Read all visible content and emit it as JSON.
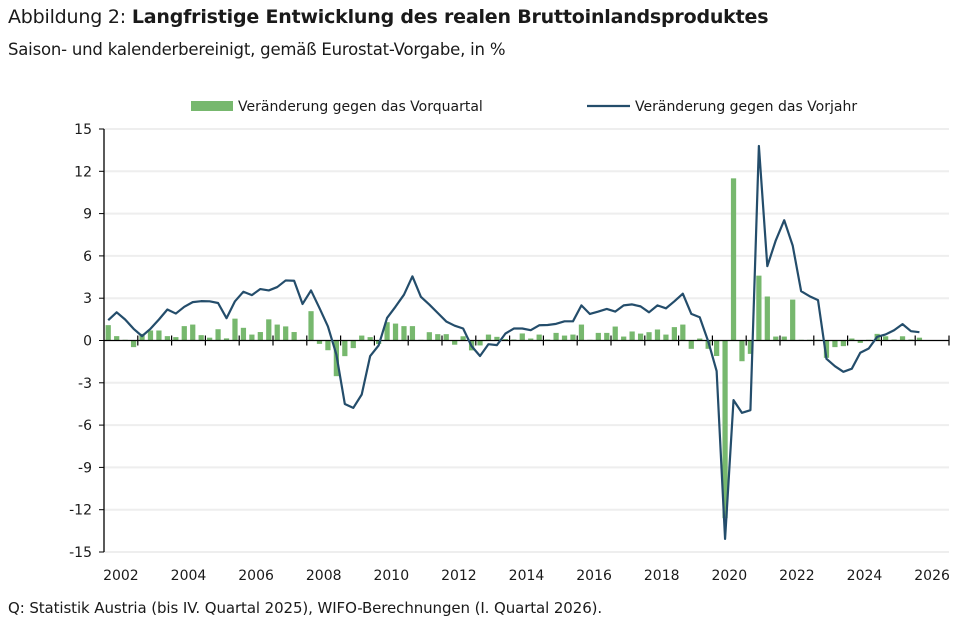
{
  "header": {
    "title_prefix": "Abbildung 2: ",
    "title_main": "Langfristige Entwicklung des realen Bruttoinlandsproduktes",
    "subtitle": "Saison- und kalenderbereinigt, gemäß Eurostat-Vorgabe, in %"
  },
  "footer": {
    "source": "Q: Statistik Austria (bis IV. Quartal 2025), WIFO-Berechnungen (I. Quartal 2026)."
  },
  "colors": {
    "bars": "#77b86e",
    "line": "#244d6b",
    "grid": "#eeeeee",
    "axis": "#000000"
  },
  "chart_data": {
    "type": "bar+line",
    "title": "Langfristige Entwicklung des realen Bruttoinlandsproduktes",
    "subtitle": "Saison- und kalenderbereinigt, gemäß Eurostat-Vorgabe, in %",
    "xlabel": "",
    "ylabel": "",
    "ylim": [
      -15,
      15
    ],
    "yticks": [
      15,
      12,
      9,
      6,
      3,
      0,
      -3,
      -6,
      -9,
      -12,
      -15
    ],
    "xlim_years": [
      2002,
      2027
    ],
    "xtick_labels": [
      "2002",
      "2004",
      "2006",
      "2008",
      "2010",
      "2012",
      "2014",
      "2016",
      "2018",
      "2020",
      "2022",
      "2024",
      "2026"
    ],
    "x_start": "2002Q1",
    "x_end": "2026Q1",
    "grid": "horizontal",
    "legend_position": "top",
    "series": [
      {
        "name": "Veränderung gegen das Vorquartal",
        "type": "bar",
        "values": [
          1.09,
          0.31,
          0.05,
          -0.47,
          0.47,
          0.71,
          0.71,
          0.31,
          0.24,
          1.02,
          1.13,
          0.38,
          0.2,
          0.8,
          0.15,
          1.55,
          0.9,
          0.42,
          0.6,
          1.5,
          1.13,
          1.0,
          0.6,
          0.05,
          2.08,
          -0.24,
          -0.69,
          -2.53,
          -1.11,
          -0.54,
          0.35,
          0.24,
          -0.25,
          1.3,
          1.2,
          1.02,
          1.02,
          0.05,
          0.59,
          0.45,
          0.45,
          -0.3,
          0.3,
          -0.7,
          -0.35,
          0.42,
          0.26,
          0.1,
          0.07,
          0.5,
          0.14,
          0.42,
          0.07,
          0.54,
          0.35,
          0.42,
          1.13,
          0.05,
          0.54,
          0.54,
          0.99,
          0.28,
          0.64,
          0.49,
          0.59,
          0.78,
          0.42,
          0.95,
          1.13,
          -0.59,
          0.14,
          -0.59,
          -1.1,
          -12.6,
          11.5,
          -1.47,
          -0.95,
          4.6,
          3.12,
          0.28,
          0.28,
          2.9,
          0.05,
          0.05,
          0.05,
          -1.23,
          -0.47,
          -0.4,
          0.14,
          -0.17,
          0.05,
          0.47,
          0.3,
          0.07,
          0.3,
          0.07,
          0.2
        ]
      },
      {
        "name": "Veränderung gegen das Vorjahr",
        "type": "line",
        "values": [
          1.44,
          2.0,
          1.49,
          0.83,
          0.31,
          0.83,
          1.49,
          2.2,
          1.91,
          2.39,
          2.72,
          2.79,
          2.78,
          2.66,
          1.58,
          2.78,
          3.46,
          3.22,
          3.65,
          3.55,
          3.79,
          4.26,
          4.24,
          2.59,
          3.55,
          2.3,
          1.0,
          -1.0,
          -4.5,
          -4.78,
          -3.83,
          -1.1,
          -0.35,
          1.6,
          2.4,
          3.25,
          4.55,
          3.1,
          2.55,
          1.95,
          1.35,
          1.05,
          0.85,
          -0.4,
          -1.1,
          -0.26,
          -0.33,
          0.49,
          0.85,
          0.85,
          0.73,
          1.08,
          1.1,
          1.18,
          1.36,
          1.36,
          2.49,
          1.88,
          2.05,
          2.24,
          2.05,
          2.49,
          2.56,
          2.42,
          2.0,
          2.49,
          2.28,
          2.78,
          3.32,
          1.89,
          1.65,
          -0.05,
          -2.17,
          -14.07,
          -4.23,
          -5.13,
          -4.94,
          13.8,
          5.27,
          7.1,
          8.53,
          6.74,
          3.5,
          3.14,
          2.86,
          -1.3,
          -1.82,
          -2.22,
          -2.0,
          -0.87,
          -0.57,
          0.26,
          0.43,
          0.73,
          1.16,
          0.66,
          0.59
        ]
      }
    ]
  }
}
